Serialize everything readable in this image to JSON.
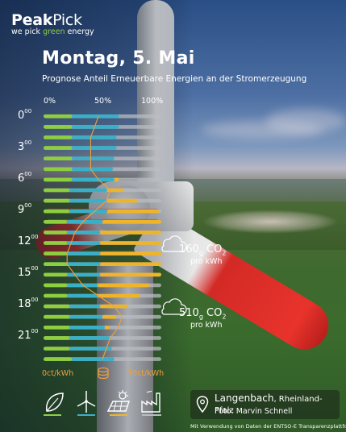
{
  "brand": {
    "name_bold": "Peak",
    "name_regular": "Pick",
    "tagline_pre": "we pick ",
    "tagline_green": "green",
    "tagline_post": " energy"
  },
  "title": "Montag, 5. Mai",
  "subtitle": "Prognose Anteil Erneuerbare Energien an der Stromerzeugung",
  "percent_ticks": [
    "0%",
    "50%",
    "100%"
  ],
  "hour_labels": [
    {
      "h": "0",
      "m": "00"
    },
    {
      "h": "3",
      "m": "00"
    },
    {
      "h": "6",
      "m": "00"
    },
    {
      "h": "9",
      "m": "00"
    },
    {
      "h": "12",
      "m": "00"
    },
    {
      "h": "15",
      "m": "00"
    },
    {
      "h": "18",
      "m": "00"
    },
    {
      "h": "21",
      "m": "00"
    }
  ],
  "co2_labels": [
    {
      "value": "160",
      "unit_sub": "g",
      "gas": " CO",
      "gas_sub": "2",
      "per": "pro kWh"
    },
    {
      "value": "510",
      "unit_sub": "g",
      "gas": " CO",
      "gas_sub": "2",
      "per": "pro kWh"
    }
  ],
  "price_scale": {
    "min": "0ct/kWh",
    "max": "30ct/kWh"
  },
  "location": {
    "place": "Langenbach",
    "state": ", Rheinland-Pfalz",
    "photo": "Foto: Marvin Schnell"
  },
  "credit": "Mit Verwendung von Daten der ENTSO-E Transparenzplattform",
  "colors": {
    "green": "#8dcf3f",
    "blue": "#3ab0c8",
    "yellow": "#f0b429",
    "red": "#d93b2b",
    "grey": "#b9bcc0",
    "orange": "#f0a13a"
  },
  "icons": [
    "biomass-leaf-icon",
    "wind-turbine-icon",
    "solar-panel-icon",
    "power-plant-icon"
  ],
  "chart_data": {
    "type": "bar",
    "stacked": true,
    "orientation": "horizontal",
    "x_range": [
      0,
      100
    ],
    "x_unit": "%",
    "series_keys": [
      "biomass",
      "wind",
      "solar"
    ],
    "hours": [
      0,
      1,
      2,
      3,
      4,
      5,
      6,
      7,
      8,
      9,
      10,
      11,
      12,
      13,
      14,
      15,
      16,
      17,
      18,
      19,
      20,
      21,
      22,
      23
    ],
    "rows": [
      {
        "biomass": 24,
        "wind": 40,
        "solar": 0,
        "fossil_red": false
      },
      {
        "biomass": 24,
        "wind": 40,
        "solar": 0,
        "fossil_red": false
      },
      {
        "biomass": 24,
        "wind": 38,
        "solar": 0,
        "fossil_red": false
      },
      {
        "biomass": 24,
        "wind": 38,
        "solar": 0,
        "fossil_red": false
      },
      {
        "biomass": 24,
        "wind": 36,
        "solar": 0,
        "fossil_red": false
      },
      {
        "biomass": 24,
        "wind": 35,
        "solar": 0,
        "fossil_red": false
      },
      {
        "biomass": 24,
        "wind": 36,
        "solar": 4,
        "fossil_red": false
      },
      {
        "biomass": 22,
        "wind": 32,
        "solar": 14,
        "fossil_red": false
      },
      {
        "biomass": 22,
        "wind": 32,
        "solar": 26,
        "fossil_red": false
      },
      {
        "biomass": 22,
        "wind": 32,
        "solar": 44,
        "fossil_red": true
      },
      {
        "biomass": 20,
        "wind": 30,
        "solar": 52,
        "fossil_red": true
      },
      {
        "biomass": 20,
        "wind": 28,
        "solar": 56,
        "fossil_red": false
      },
      {
        "biomass": 20,
        "wind": 28,
        "solar": 58,
        "fossil_red": false
      },
      {
        "biomass": 20,
        "wind": 28,
        "solar": 58,
        "fossil_red": false
      },
      {
        "biomass": 20,
        "wind": 28,
        "solar": 56,
        "fossil_red": false
      },
      {
        "biomass": 20,
        "wind": 28,
        "solar": 52,
        "fossil_red": false
      },
      {
        "biomass": 20,
        "wind": 26,
        "solar": 44,
        "fossil_red": false
      },
      {
        "biomass": 20,
        "wind": 26,
        "solar": 36,
        "fossil_red": false
      },
      {
        "biomass": 22,
        "wind": 26,
        "solar": 24,
        "fossil_red": false
      },
      {
        "biomass": 22,
        "wind": 28,
        "solar": 12,
        "fossil_red": false
      },
      {
        "biomass": 22,
        "wind": 30,
        "solar": 4,
        "fossil_red": false
      },
      {
        "biomass": 22,
        "wind": 34,
        "solar": 0,
        "fossil_red": false
      },
      {
        "biomass": 22,
        "wind": 36,
        "solar": 0,
        "fossil_red": false
      },
      {
        "biomass": 24,
        "wind": 36,
        "solar": 0,
        "fossil_red": false
      }
    ],
    "price_line_ct": [
      14,
      13,
      12,
      12,
      12,
      12,
      14,
      17,
      16,
      13,
      10,
      8,
      7,
      6,
      6,
      8,
      10,
      14,
      18,
      20,
      19,
      17,
      16,
      15
    ],
    "price_range_ct": [
      0,
      30
    ]
  }
}
